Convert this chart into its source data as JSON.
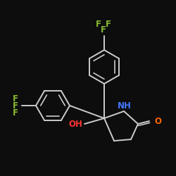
{
  "background": "#0d0d0d",
  "bond_color": "#cccccc",
  "bond_width": 1.4,
  "label_OH": {
    "text": "OH",
    "color": "#ff3333",
    "fontsize": 8.5
  },
  "label_NH": {
    "text": "NH",
    "color": "#4477ff",
    "fontsize": 8.5
  },
  "label_O": {
    "text": "O",
    "color": "#ff6600",
    "fontsize": 8.5
  },
  "label_F": {
    "color": "#88bb33",
    "fontsize": 8.5
  },
  "figsize": [
    2.5,
    2.5
  ],
  "dpi": 100
}
